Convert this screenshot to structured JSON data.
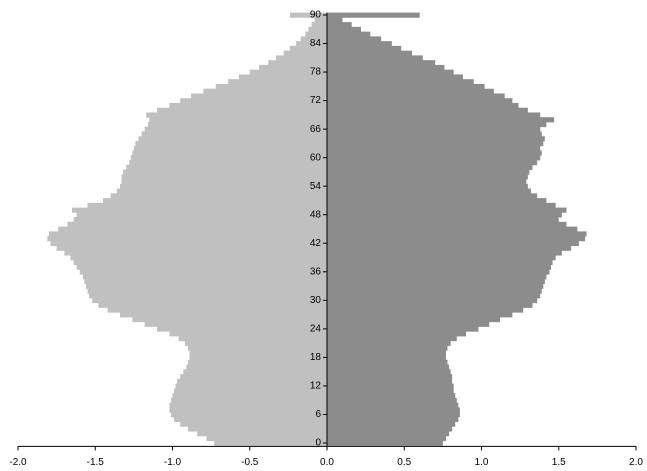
{
  "chart_data": {
    "type": "pyramid",
    "y": [
      0,
      1,
      2,
      3,
      4,
      5,
      6,
      7,
      8,
      9,
      10,
      11,
      12,
      13,
      14,
      15,
      16,
      17,
      18,
      19,
      20,
      21,
      22,
      23,
      24,
      25,
      26,
      27,
      28,
      29,
      30,
      31,
      32,
      33,
      34,
      35,
      36,
      37,
      38,
      39,
      40,
      41,
      42,
      43,
      44,
      45,
      46,
      47,
      48,
      49,
      50,
      51,
      52,
      53,
      54,
      55,
      56,
      57,
      58,
      59,
      60,
      61,
      62,
      63,
      64,
      65,
      66,
      67,
      68,
      69,
      70,
      71,
      72,
      73,
      74,
      75,
      76,
      77,
      78,
      79,
      80,
      81,
      82,
      83,
      84,
      85,
      86,
      87,
      88,
      89,
      90
    ],
    "series": [
      {
        "color": "#c0c0c0",
        "values": [
          -0.73,
          -0.78,
          -0.84,
          -0.9,
          -0.95,
          -0.99,
          -1.01,
          -1.02,
          -1.02,
          -1.01,
          -1.0,
          -0.99,
          -0.98,
          -0.97,
          -0.95,
          -0.93,
          -0.91,
          -0.9,
          -0.89,
          -0.89,
          -0.9,
          -0.92,
          -0.96,
          -1.02,
          -1.1,
          -1.18,
          -1.26,
          -1.34,
          -1.42,
          -1.48,
          -1.52,
          -1.54,
          -1.55,
          -1.56,
          -1.57,
          -1.58,
          -1.6,
          -1.62,
          -1.64,
          -1.66,
          -1.7,
          -1.75,
          -1.79,
          -1.81,
          -1.8,
          -1.74,
          -1.68,
          -1.64,
          -1.62,
          -1.65,
          -1.55,
          -1.45,
          -1.4,
          -1.36,
          -1.34,
          -1.33,
          -1.33,
          -1.32,
          -1.3,
          -1.28,
          -1.27,
          -1.26,
          -1.25,
          -1.24,
          -1.22,
          -1.2,
          -1.18,
          -1.16,
          -1.15,
          -1.17,
          -1.1,
          -1.02,
          -0.95,
          -0.88,
          -0.8,
          -0.72,
          -0.64,
          -0.57,
          -0.5,
          -0.44,
          -0.38,
          -0.33,
          -0.28,
          -0.24,
          -0.2,
          -0.17,
          -0.14,
          -0.12,
          -0.1,
          -0.08,
          -0.24
        ]
      },
      {
        "color": "#8c8c8c",
        "values": [
          0.75,
          0.77,
          0.79,
          0.81,
          0.83,
          0.85,
          0.86,
          0.86,
          0.85,
          0.84,
          0.83,
          0.82,
          0.82,
          0.81,
          0.81,
          0.8,
          0.79,
          0.78,
          0.77,
          0.77,
          0.78,
          0.8,
          0.84,
          0.9,
          0.98,
          1.05,
          1.12,
          1.2,
          1.27,
          1.33,
          1.36,
          1.38,
          1.39,
          1.4,
          1.41,
          1.42,
          1.44,
          1.45,
          1.46,
          1.48,
          1.52,
          1.58,
          1.63,
          1.67,
          1.68,
          1.62,
          1.55,
          1.5,
          1.52,
          1.55,
          1.48,
          1.42,
          1.36,
          1.32,
          1.3,
          1.29,
          1.3,
          1.31,
          1.33,
          1.36,
          1.38,
          1.39,
          1.38,
          1.4,
          1.41,
          1.39,
          1.38,
          1.42,
          1.47,
          1.38,
          1.3,
          1.24,
          1.2,
          1.15,
          1.08,
          1.02,
          0.95,
          0.88,
          0.82,
          0.76,
          0.7,
          0.62,
          0.55,
          0.48,
          0.42,
          0.35,
          0.28,
          0.22,
          0.16,
          0.1,
          0.6
        ]
      }
    ],
    "xlim": [
      -2,
      2
    ],
    "xticks": [
      {
        "value": -2,
        "label": "-2.0"
      },
      {
        "value": -1.5,
        "label": "-1.5"
      },
      {
        "value": -1,
        "label": "-1.0"
      },
      {
        "value": -0.5,
        "label": "-0.5"
      },
      {
        "value": 0,
        "label": "0.0"
      },
      {
        "value": 0.5,
        "label": "0.5"
      },
      {
        "value": 1,
        "label": "1.0"
      },
      {
        "value": 1.5,
        "label": "1.5"
      },
      {
        "value": 2,
        "label": "2.0"
      }
    ],
    "ylim": [
      -0.5,
      90.5
    ],
    "yticks": [
      0,
      6,
      12,
      18,
      24,
      30,
      36,
      42,
      48,
      54,
      60,
      66,
      72,
      78,
      84,
      90
    ]
  }
}
